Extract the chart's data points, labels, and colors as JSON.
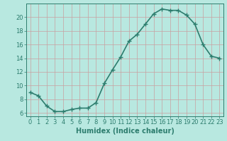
{
  "x": [
    0,
    1,
    2,
    3,
    4,
    5,
    6,
    7,
    8,
    9,
    10,
    11,
    12,
    13,
    14,
    15,
    16,
    17,
    18,
    19,
    20,
    21,
    22,
    23
  ],
  "y": [
    9.0,
    8.5,
    7.0,
    6.2,
    6.2,
    6.5,
    6.7,
    6.7,
    7.5,
    10.3,
    12.3,
    14.2,
    16.5,
    17.5,
    19.0,
    20.5,
    21.2,
    21.0,
    21.0,
    20.3,
    19.0,
    16.0,
    14.3,
    14.0
  ],
  "line_color": "#2d7d6e",
  "marker": "+",
  "marker_size": 4,
  "bg_color": "#b8e8e0",
  "grid_color": "#c8a0a0",
  "xlabel": "Humidex (Indice chaleur)",
  "xlim": [
    -0.5,
    23.5
  ],
  "ylim": [
    5.5,
    22.0
  ],
  "xticks": [
    0,
    1,
    2,
    3,
    4,
    5,
    6,
    7,
    8,
    9,
    10,
    11,
    12,
    13,
    14,
    15,
    16,
    17,
    18,
    19,
    20,
    21,
    22,
    23
  ],
  "yticks": [
    6,
    8,
    10,
    12,
    14,
    16,
    18,
    20
  ],
  "tick_color": "#2d7d6e",
  "axis_color": "#2d7d6e",
  "xlabel_fontsize": 7,
  "tick_fontsize": 6,
  "linewidth": 1.2,
  "marker_edge_width": 1.0
}
